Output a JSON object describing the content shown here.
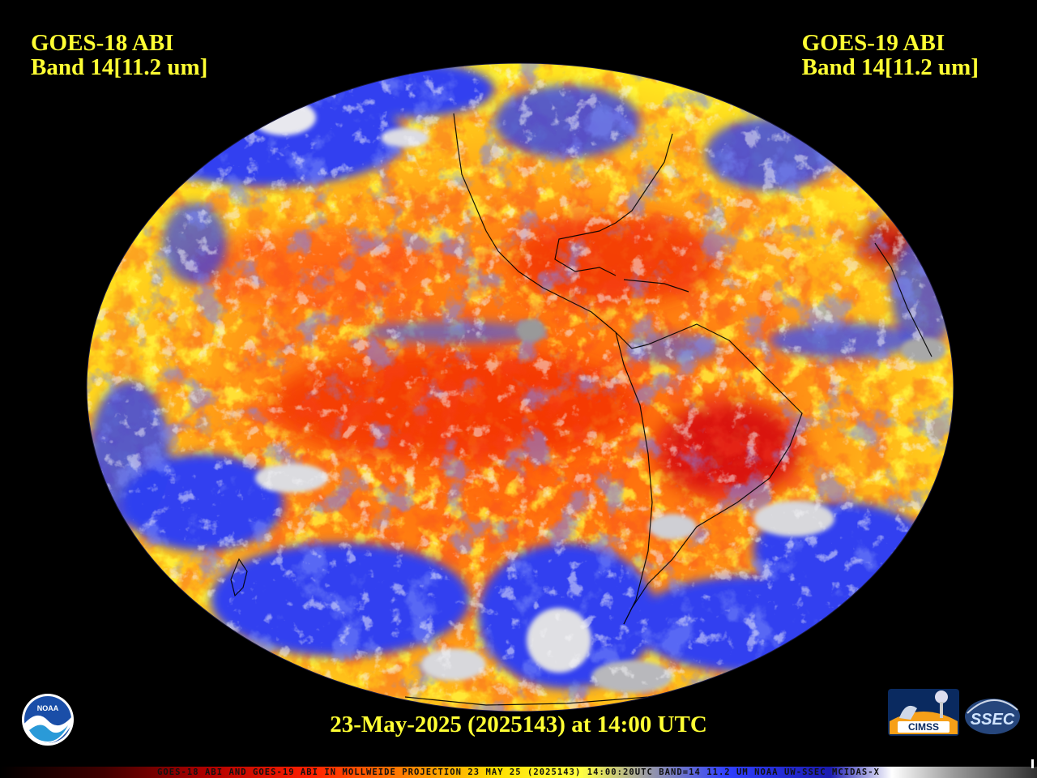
{
  "left_title": {
    "line1": "GOES-18 ABI",
    "line2": "Band 14[11.2 um]"
  },
  "right_title": {
    "line1": "GOES-19 ABI",
    "line2": "Band 14[11.2 um]"
  },
  "timestamp": "23-May-2025 (2025143) at 14:00 UTC",
  "caption": "GOES-18 ABI AND GOES-19 ABI IN MOLLWEIDE PROJECTION 23 MAY 25 (2025143) 14:00:20UTC BAND=14 11.2 UM NOAA UW-SSEC MCIDAS-X",
  "logos": {
    "noaa": "NOAA",
    "cimss": "CIMSS",
    "ssec": "SSEC"
  },
  "colors": {
    "title_text": "#ffff33",
    "ocean_warm": "#ff7a10",
    "hot": "#e0000a",
    "cold_cloud": "#3040f0",
    "coldest": "#c8c8c8",
    "cool": "#ffee00"
  },
  "projection": "Mollweide",
  "icons": [
    "noaa-logo",
    "cimss-logo",
    "ssec-logo"
  ]
}
